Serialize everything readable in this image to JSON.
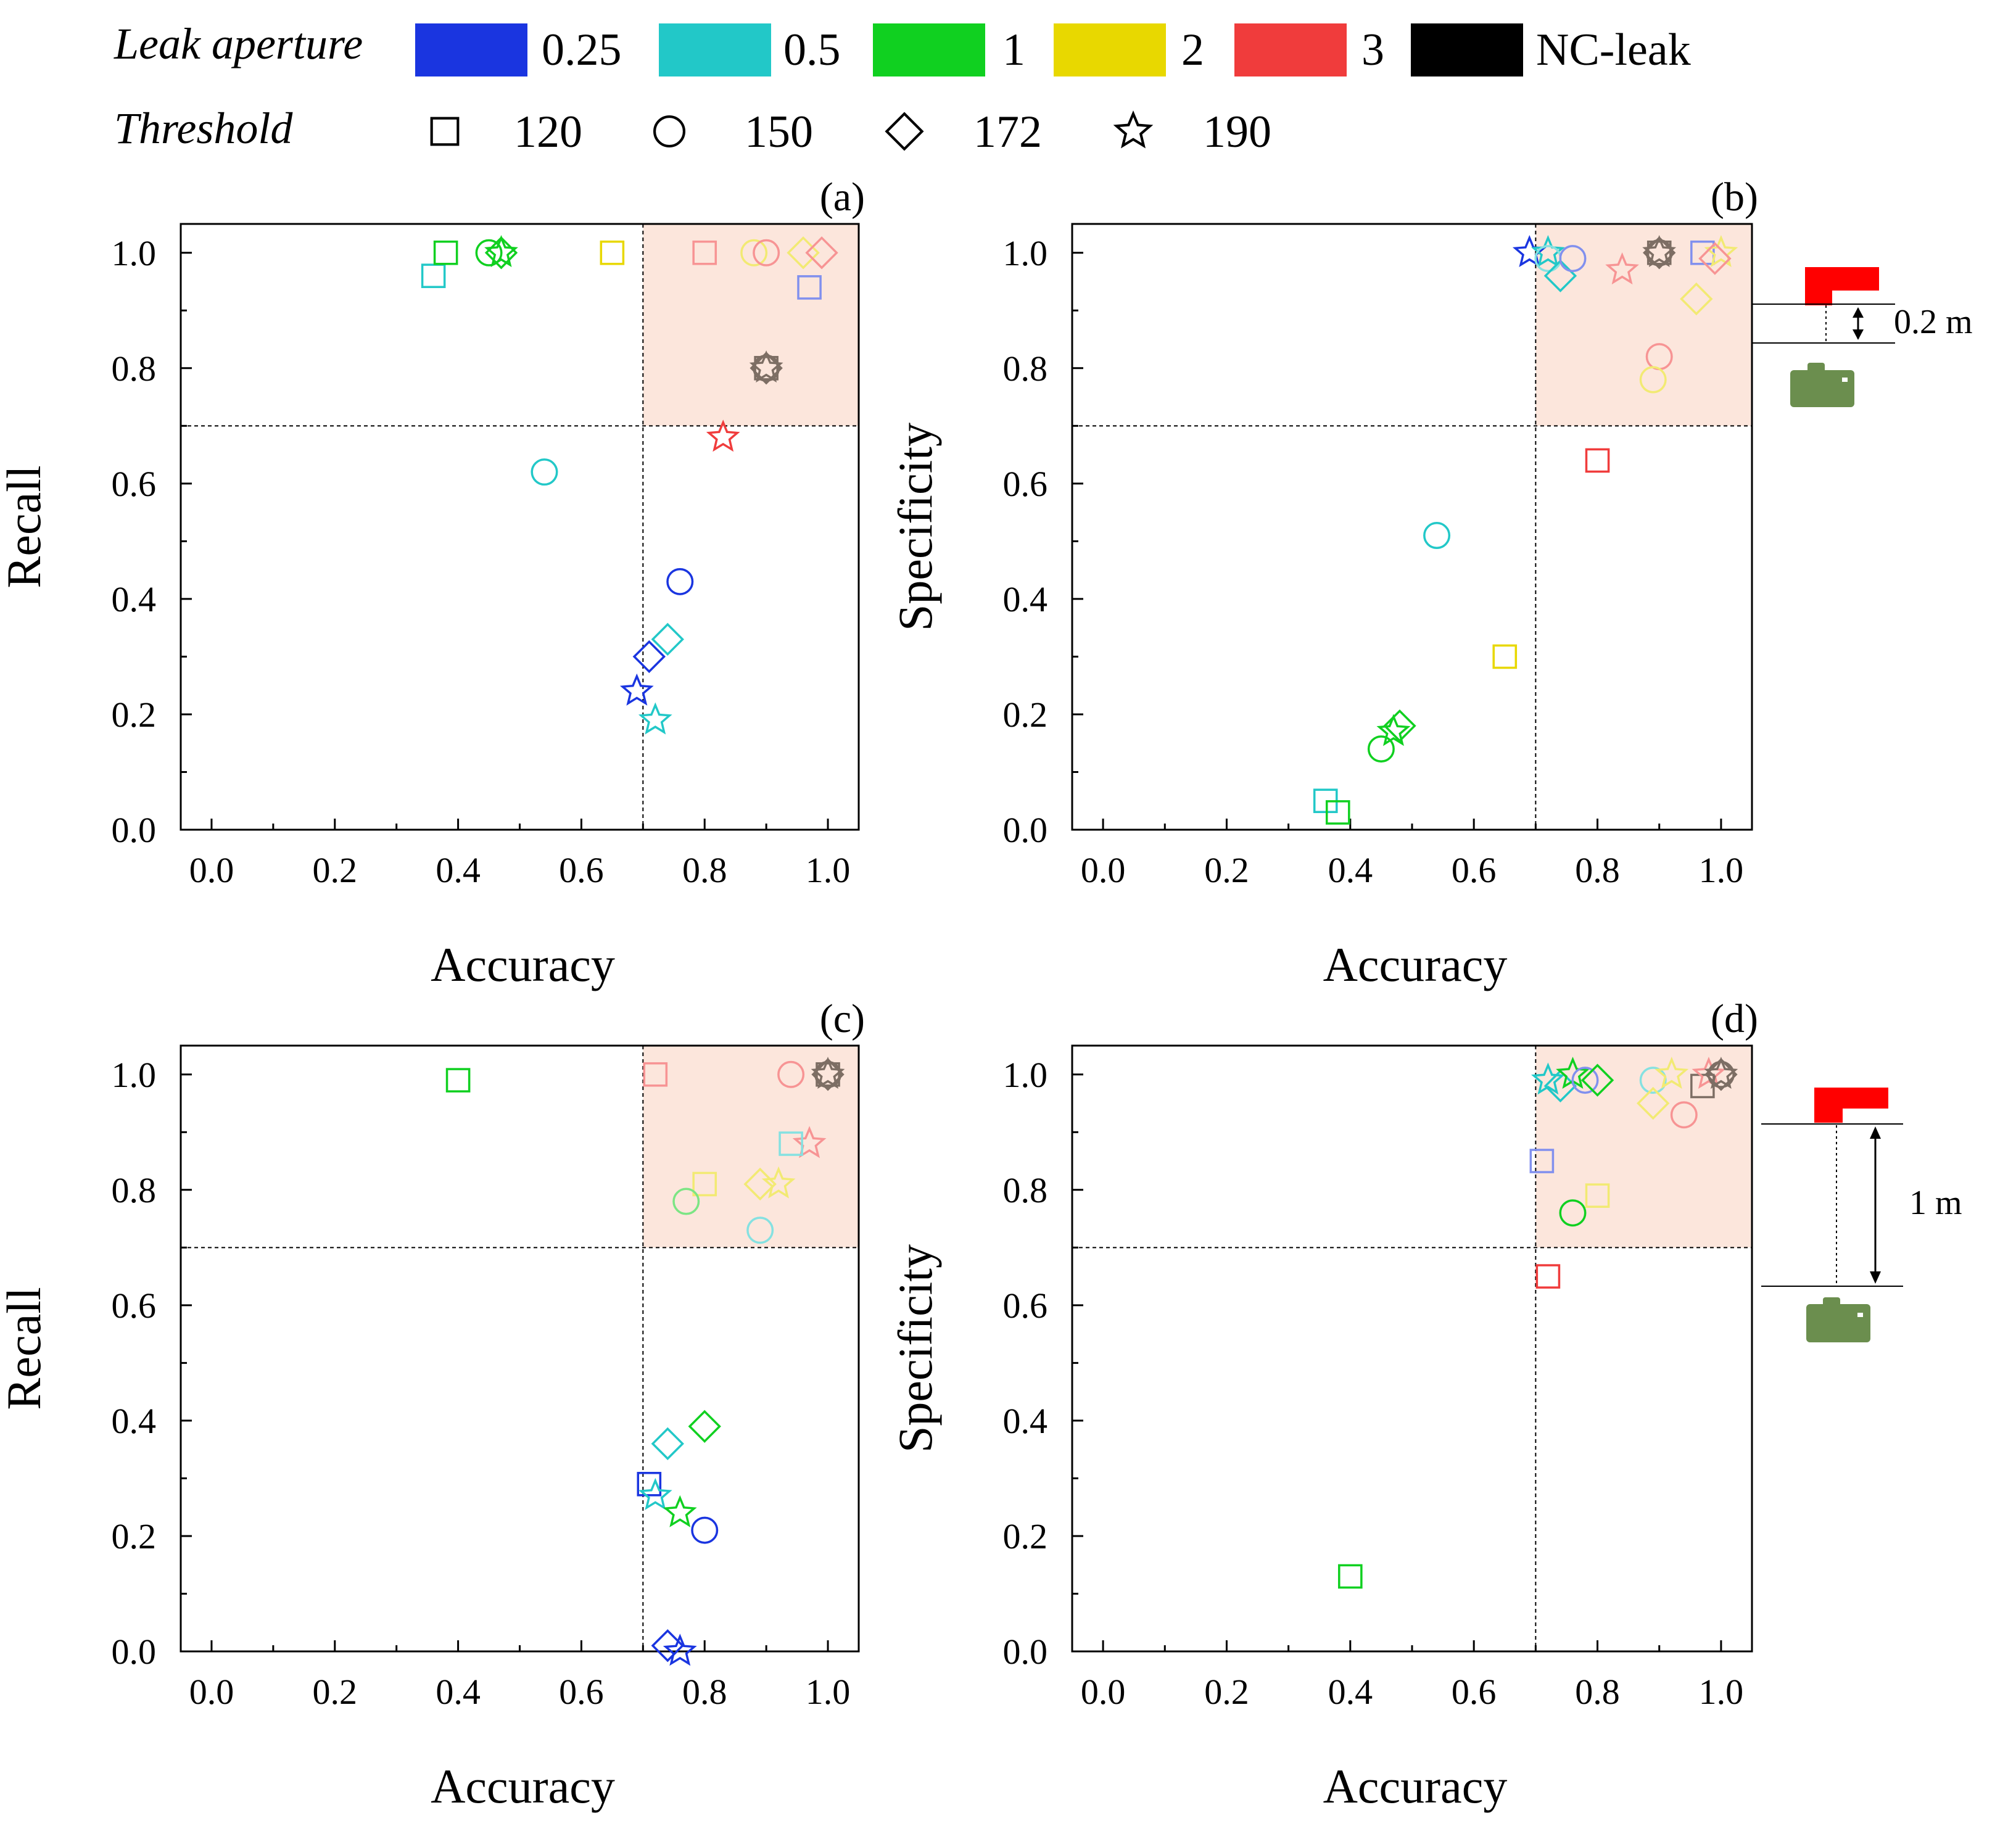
{
  "legend": {
    "aperture_title": "Leak aperture",
    "threshold_title": "Threshold",
    "apertures": [
      {
        "label": "0.25",
        "color": "#1a35e0"
      },
      {
        "label": "0.5",
        "color": "#22c8c8"
      },
      {
        "label": "1",
        "color": "#10d020"
      },
      {
        "label": "2",
        "color": "#e8d800"
      },
      {
        "label": "3",
        "color": "#f03c3c"
      },
      {
        "label": "NC-leak",
        "color": "#000000"
      }
    ],
    "thresholds": [
      {
        "label": "120",
        "marker": "square"
      },
      {
        "label": "150",
        "marker": "circle"
      },
      {
        "label": "172",
        "marker": "diamond"
      },
      {
        "label": "190",
        "marker": "star"
      }
    ]
  },
  "insets": {
    "top_distance": "0.2 m",
    "bottom_distance": "1 m",
    "emitter_icon": "red-leak-source-icon",
    "camera_icon": "green-camera-icon",
    "emitter_color": "#ff0000",
    "camera_color": "#6b8e4e"
  },
  "chart_data": [
    {
      "type": "scatter",
      "panel": "a",
      "tag": "(a)",
      "xlabel": "Accuracy",
      "ylabel": "Recall",
      "xlim": [
        -0.05,
        1.05
      ],
      "ylim": [
        0,
        1.05
      ],
      "xticks": [
        "0.0",
        "0.2",
        "0.4",
        "0.6",
        "0.8",
        "1.0"
      ],
      "yticks": [
        "0.0",
        "0.2",
        "0.4",
        "0.6",
        "0.8",
        "1.0"
      ],
      "threshold_lines": {
        "x": 0.7,
        "y": 0.7
      },
      "highlight_region": {
        "x": [
          0.7,
          1.05
        ],
        "y": [
          0.7,
          1.05
        ],
        "color": "#fce6dc"
      },
      "points": [
        {
          "x": 0.36,
          "y": 0.96,
          "aperture": "0.5",
          "threshold": "120"
        },
        {
          "x": 0.38,
          "y": 1.0,
          "aperture": "1",
          "threshold": "120"
        },
        {
          "x": 0.45,
          "y": 1.0,
          "aperture": "1",
          "threshold": "150"
        },
        {
          "x": 0.47,
          "y": 1.0,
          "aperture": "1",
          "threshold": "172"
        },
        {
          "x": 0.47,
          "y": 1.0,
          "aperture": "1",
          "threshold": "190"
        },
        {
          "x": 0.65,
          "y": 1.0,
          "aperture": "2",
          "threshold": "120"
        },
        {
          "x": 0.8,
          "y": 1.0,
          "aperture": "3",
          "threshold": "120",
          "faded": true
        },
        {
          "x": 0.88,
          "y": 1.0,
          "aperture": "2",
          "threshold": "150",
          "faded": true
        },
        {
          "x": 0.9,
          "y": 1.0,
          "aperture": "3",
          "threshold": "150",
          "faded": true
        },
        {
          "x": 0.96,
          "y": 1.0,
          "aperture": "2",
          "threshold": "172",
          "faded": true
        },
        {
          "x": 0.99,
          "y": 1.0,
          "aperture": "3",
          "threshold": "172",
          "faded": true
        },
        {
          "x": 0.97,
          "y": 0.94,
          "aperture": "0.25",
          "threshold": "120",
          "faded": true
        },
        {
          "x": 0.9,
          "y": 0.8,
          "aperture": "NC-leak",
          "threshold": "120",
          "faded": true
        },
        {
          "x": 0.9,
          "y": 0.8,
          "aperture": "NC-leak",
          "threshold": "150",
          "faded": true
        },
        {
          "x": 0.9,
          "y": 0.8,
          "aperture": "NC-leak",
          "threshold": "172",
          "faded": true
        },
        {
          "x": 0.9,
          "y": 0.8,
          "aperture": "NC-leak",
          "threshold": "190",
          "faded": true
        },
        {
          "x": 0.83,
          "y": 0.68,
          "aperture": "3",
          "threshold": "190"
        },
        {
          "x": 0.54,
          "y": 0.62,
          "aperture": "0.5",
          "threshold": "150"
        },
        {
          "x": 0.76,
          "y": 0.43,
          "aperture": "0.25",
          "threshold": "150"
        },
        {
          "x": 0.74,
          "y": 0.33,
          "aperture": "0.5",
          "threshold": "172"
        },
        {
          "x": 0.71,
          "y": 0.3,
          "aperture": "0.25",
          "threshold": "172"
        },
        {
          "x": 0.69,
          "y": 0.24,
          "aperture": "0.25",
          "threshold": "190"
        },
        {
          "x": 0.72,
          "y": 0.19,
          "aperture": "0.5",
          "threshold": "190"
        }
      ]
    },
    {
      "type": "scatter",
      "panel": "b",
      "tag": "(b)",
      "xlabel": "Accuracy",
      "ylabel": "Specificity",
      "xlim": [
        -0.05,
        1.05
      ],
      "ylim": [
        0,
        1.05
      ],
      "xticks": [
        "0.0",
        "0.2",
        "0.4",
        "0.6",
        "0.8",
        "1.0"
      ],
      "yticks": [
        "0.0",
        "0.2",
        "0.4",
        "0.6",
        "0.8",
        "1.0"
      ],
      "threshold_lines": {
        "x": 0.7,
        "y": 0.7
      },
      "highlight_region": {
        "x": [
          0.7,
          1.05
        ],
        "y": [
          0.7,
          1.05
        ],
        "color": "#fce6dc"
      },
      "points": [
        {
          "x": 0.69,
          "y": 1.0,
          "aperture": "0.25",
          "threshold": "190"
        },
        {
          "x": 0.72,
          "y": 1.0,
          "aperture": "0.5",
          "threshold": "190"
        },
        {
          "x": 0.72,
          "y": 0.99,
          "aperture": "0.5",
          "threshold": "150",
          "faded": true
        },
        {
          "x": 0.74,
          "y": 0.96,
          "aperture": "0.5",
          "threshold": "172"
        },
        {
          "x": 0.76,
          "y": 0.99,
          "aperture": "0.25",
          "threshold": "150",
          "faded": true
        },
        {
          "x": 0.84,
          "y": 0.97,
          "aperture": "3",
          "threshold": "190",
          "faded": true
        },
        {
          "x": 0.9,
          "y": 1.0,
          "aperture": "NC-leak",
          "threshold": "120",
          "faded": true
        },
        {
          "x": 0.9,
          "y": 1.0,
          "aperture": "NC-leak",
          "threshold": "150",
          "faded": true
        },
        {
          "x": 0.9,
          "y": 1.0,
          "aperture": "NC-leak",
          "threshold": "172",
          "faded": true
        },
        {
          "x": 0.9,
          "y": 1.0,
          "aperture": "NC-leak",
          "threshold": "190",
          "faded": true
        },
        {
          "x": 0.97,
          "y": 1.0,
          "aperture": "0.25",
          "threshold": "120",
          "faded": true
        },
        {
          "x": 1.0,
          "y": 1.0,
          "aperture": "2",
          "threshold": "190",
          "faded": true
        },
        {
          "x": 0.99,
          "y": 0.99,
          "aperture": "3",
          "threshold": "172",
          "faded": true
        },
        {
          "x": 0.96,
          "y": 0.92,
          "aperture": "2",
          "threshold": "172",
          "faded": true
        },
        {
          "x": 0.9,
          "y": 0.82,
          "aperture": "3",
          "threshold": "150",
          "faded": true
        },
        {
          "x": 0.89,
          "y": 0.78,
          "aperture": "2",
          "threshold": "150",
          "faded": true
        },
        {
          "x": 0.8,
          "y": 0.64,
          "aperture": "3",
          "threshold": "120"
        },
        {
          "x": 0.54,
          "y": 0.51,
          "aperture": "0.5",
          "threshold": "150"
        },
        {
          "x": 0.65,
          "y": 0.3,
          "aperture": "2",
          "threshold": "120"
        },
        {
          "x": 0.48,
          "y": 0.18,
          "aperture": "1",
          "threshold": "172"
        },
        {
          "x": 0.47,
          "y": 0.17,
          "aperture": "1",
          "threshold": "190"
        },
        {
          "x": 0.45,
          "y": 0.14,
          "aperture": "1",
          "threshold": "150"
        },
        {
          "x": 0.36,
          "y": 0.05,
          "aperture": "0.5",
          "threshold": "120"
        },
        {
          "x": 0.38,
          "y": 0.03,
          "aperture": "1",
          "threshold": "120"
        }
      ]
    },
    {
      "type": "scatter",
      "panel": "c",
      "tag": "(c)",
      "xlabel": "Accuracy",
      "ylabel": "Recall",
      "xlim": [
        -0.05,
        1.05
      ],
      "ylim": [
        0,
        1.05
      ],
      "xticks": [
        "0.0",
        "0.2",
        "0.4",
        "0.6",
        "0.8",
        "1.0"
      ],
      "yticks": [
        "0.0",
        "0.2",
        "0.4",
        "0.6",
        "0.8",
        "1.0"
      ],
      "threshold_lines": {
        "x": 0.7,
        "y": 0.7
      },
      "highlight_region": {
        "x": [
          0.7,
          1.05
        ],
        "y": [
          0.7,
          1.05
        ],
        "color": "#fce6dc"
      },
      "points": [
        {
          "x": 0.4,
          "y": 0.99,
          "aperture": "1",
          "threshold": "120"
        },
        {
          "x": 0.72,
          "y": 1.0,
          "aperture": "3",
          "threshold": "120",
          "faded": true
        },
        {
          "x": 0.94,
          "y": 1.0,
          "aperture": "3",
          "threshold": "150",
          "faded": true
        },
        {
          "x": 1.0,
          "y": 1.0,
          "aperture": "NC-leak",
          "threshold": "120",
          "faded": true
        },
        {
          "x": 1.0,
          "y": 1.0,
          "aperture": "NC-leak",
          "threshold": "150",
          "faded": true
        },
        {
          "x": 1.0,
          "y": 1.0,
          "aperture": "NC-leak",
          "threshold": "172",
          "faded": true
        },
        {
          "x": 1.0,
          "y": 1.0,
          "aperture": "NC-leak",
          "threshold": "190",
          "faded": true
        },
        {
          "x": 0.97,
          "y": 0.88,
          "aperture": "3",
          "threshold": "190",
          "faded": true
        },
        {
          "x": 0.94,
          "y": 0.88,
          "aperture": "0.5",
          "threshold": "120",
          "faded": true
        },
        {
          "x": 0.8,
          "y": 0.81,
          "aperture": "2",
          "threshold": "120",
          "faded": true
        },
        {
          "x": 0.77,
          "y": 0.78,
          "aperture": "1",
          "threshold": "150",
          "faded": true
        },
        {
          "x": 0.89,
          "y": 0.81,
          "aperture": "2",
          "threshold": "172",
          "faded": true
        },
        {
          "x": 0.92,
          "y": 0.81,
          "aperture": "2",
          "threshold": "190",
          "faded": true
        },
        {
          "x": 0.89,
          "y": 0.73,
          "aperture": "0.5",
          "threshold": "150",
          "faded": true
        },
        {
          "x": 0.8,
          "y": 0.39,
          "aperture": "1",
          "threshold": "172"
        },
        {
          "x": 0.74,
          "y": 0.36,
          "aperture": "0.5",
          "threshold": "172"
        },
        {
          "x": 0.71,
          "y": 0.29,
          "aperture": "0.25",
          "threshold": "120"
        },
        {
          "x": 0.72,
          "y": 0.27,
          "aperture": "0.5",
          "threshold": "190"
        },
        {
          "x": 0.76,
          "y": 0.24,
          "aperture": "1",
          "threshold": "190"
        },
        {
          "x": 0.8,
          "y": 0.21,
          "aperture": "0.25",
          "threshold": "150"
        },
        {
          "x": 0.74,
          "y": 0.01,
          "aperture": "0.25",
          "threshold": "172"
        },
        {
          "x": 0.76,
          "y": 0.0,
          "aperture": "0.25",
          "threshold": "190"
        }
      ]
    },
    {
      "type": "scatter",
      "panel": "d",
      "tag": "(d)",
      "xlabel": "Accuracy",
      "ylabel": "Specificity",
      "xlim": [
        -0.05,
        1.05
      ],
      "ylim": [
        0,
        1.05
      ],
      "xticks": [
        "0.0",
        "0.2",
        "0.4",
        "0.6",
        "0.8",
        "1.0"
      ],
      "yticks": [
        "0.0",
        "0.2",
        "0.4",
        "0.6",
        "0.8",
        "1.0"
      ],
      "threshold_lines": {
        "x": 0.7,
        "y": 0.7
      },
      "highlight_region": {
        "x": [
          0.7,
          1.05
        ],
        "y": [
          0.7,
          1.05
        ],
        "color": "#fce6dc"
      },
      "points": [
        {
          "x": 0.72,
          "y": 0.99,
          "aperture": "0.5",
          "threshold": "190"
        },
        {
          "x": 0.74,
          "y": 0.98,
          "aperture": "0.5",
          "threshold": "172"
        },
        {
          "x": 0.76,
          "y": 1.0,
          "aperture": "1",
          "threshold": "190"
        },
        {
          "x": 0.78,
          "y": 0.99,
          "aperture": "0.25",
          "threshold": "150",
          "faded": true
        },
        {
          "x": 0.8,
          "y": 0.99,
          "aperture": "1",
          "threshold": "172"
        },
        {
          "x": 0.89,
          "y": 0.99,
          "aperture": "0.5",
          "threshold": "150",
          "faded": true
        },
        {
          "x": 0.89,
          "y": 0.95,
          "aperture": "2",
          "threshold": "172",
          "faded": true
        },
        {
          "x": 0.92,
          "y": 1.0,
          "aperture": "2",
          "threshold": "190",
          "faded": true
        },
        {
          "x": 0.94,
          "y": 0.93,
          "aperture": "3",
          "threshold": "150",
          "faded": true
        },
        {
          "x": 0.97,
          "y": 0.98,
          "aperture": "NC-leak",
          "threshold": "120",
          "faded": true
        },
        {
          "x": 0.98,
          "y": 1.0,
          "aperture": "3",
          "threshold": "190",
          "faded": true
        },
        {
          "x": 1.0,
          "y": 1.0,
          "aperture": "NC-leak",
          "threshold": "150",
          "faded": true
        },
        {
          "x": 1.0,
          "y": 1.0,
          "aperture": "NC-leak",
          "threshold": "172",
          "faded": true
        },
        {
          "x": 1.0,
          "y": 1.0,
          "aperture": "NC-leak",
          "threshold": "190",
          "faded": true
        },
        {
          "x": 0.71,
          "y": 0.85,
          "aperture": "0.25",
          "threshold": "120",
          "faded": true
        },
        {
          "x": 0.8,
          "y": 0.79,
          "aperture": "2",
          "threshold": "120",
          "faded": true
        },
        {
          "x": 0.76,
          "y": 0.76,
          "aperture": "1",
          "threshold": "150"
        },
        {
          "x": 0.72,
          "y": 0.65,
          "aperture": "3",
          "threshold": "120"
        },
        {
          "x": 0.4,
          "y": 0.13,
          "aperture": "1",
          "threshold": "120"
        }
      ]
    }
  ]
}
